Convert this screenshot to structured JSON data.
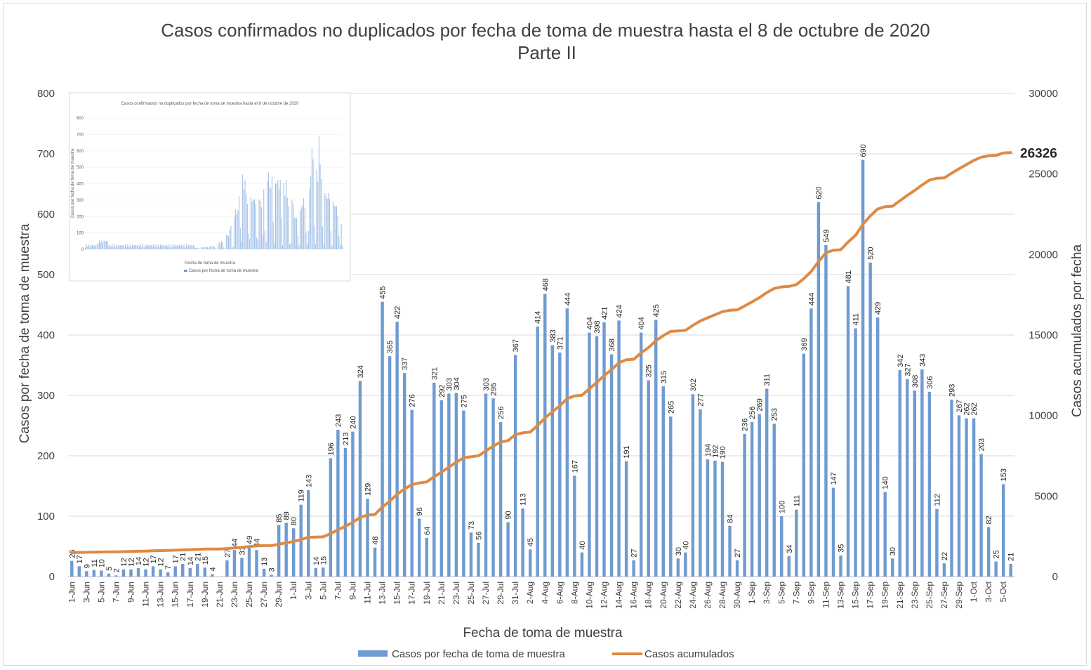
{
  "chart_data": {
    "type": "bar+line",
    "title": "Casos confirmados no duplicados por fecha de toma de muestra hasta el 8 de octubre de 2020",
    "subtitle": "Parte II",
    "xlabel": "Fecha de toma de muestra",
    "ylabel_left": "Casos por fecha de toma de muestra",
    "ylabel_right": "Casos acumulados por fecha",
    "ylim_left": [
      0,
      800
    ],
    "yticks_left": [
      0,
      100,
      200,
      300,
      400,
      500,
      600,
      700,
      800
    ],
    "ylim_right": [
      0,
      30000
    ],
    "yticks_right": [
      0,
      5000,
      10000,
      15000,
      20000,
      25000,
      30000
    ],
    "grid": true,
    "legend": "bottom",
    "categories": [
      "1-Jun",
      "2-Jun",
      "3-Jun",
      "4-Jun",
      "5-Jun",
      "6-Jun",
      "7-Jun",
      "8-Jun",
      "9-Jun",
      "10-Jun",
      "11-Jun",
      "12-Jun",
      "13-Jun",
      "14-Jun",
      "15-Jun",
      "16-Jun",
      "17-Jun",
      "18-Jun",
      "19-Jun",
      "20-Jun",
      "21-Jun",
      "22-Jun",
      "23-Jun",
      "24-Jun",
      "25-Jun",
      "26-Jun",
      "27-Jun",
      "28-Jun",
      "29-Jun",
      "30-Jun",
      "1-Jul",
      "2-Jul",
      "3-Jul",
      "4-Jul",
      "5-Jul",
      "6-Jul",
      "7-Jul",
      "8-Jul",
      "9-Jul",
      "10-Jul",
      "11-Jul",
      "12-Jul",
      "13-Jul",
      "14-Jul",
      "15-Jul",
      "16-Jul",
      "17-Jul",
      "18-Jul",
      "19-Jul",
      "20-Jul",
      "21-Jul",
      "22-Jul",
      "23-Jul",
      "24-Jul",
      "25-Jul",
      "26-Jul",
      "27-Jul",
      "28-Jul",
      "29-Jul",
      "30-Jul",
      "31-Jul",
      "1-Aug",
      "2-Aug",
      "3-Aug",
      "4-Aug",
      "5-Aug",
      "6-Aug",
      "7-Aug",
      "8-Aug",
      "9-Aug",
      "10-Aug",
      "11-Aug",
      "12-Aug",
      "13-Aug",
      "14-Aug",
      "15-Aug",
      "16-Aug",
      "17-Aug",
      "18-Aug",
      "19-Aug",
      "20-Aug",
      "21-Aug",
      "22-Aug",
      "23-Aug",
      "24-Aug",
      "25-Aug",
      "26-Aug",
      "27-Aug",
      "28-Aug",
      "29-Aug",
      "30-Aug",
      "31-Aug",
      "1-Sep",
      "2-Sep",
      "3-Sep",
      "4-Sep",
      "5-Sep",
      "6-Sep",
      "7-Sep",
      "8-Sep",
      "9-Sep",
      "10-Sep",
      "11-Sep",
      "12-Sep",
      "13-Sep",
      "14-Sep",
      "15-Sep",
      "16-Sep",
      "17-Sep",
      "18-Sep",
      "19-Sep",
      "20-Sep",
      "21-Sep",
      "22-Sep",
      "23-Sep",
      "24-Sep",
      "25-Sep",
      "26-Sep",
      "27-Sep",
      "28-Sep",
      "29-Sep",
      "30-Sep",
      "1-Oct",
      "2-Oct",
      "3-Oct",
      "4-Oct",
      "5-Oct",
      "6-Oct"
    ],
    "series": [
      {
        "name": "Casos por fecha de toma de muestra",
        "type": "bar",
        "axis": "left",
        "color": "#6f9bd1",
        "values": [
          26,
          17,
          9,
          11,
          10,
          5,
          2,
          12,
          12,
          14,
          12,
          17,
          12,
          7,
          17,
          21,
          14,
          21,
          15,
          4,
          null,
          27,
          44,
          31,
          49,
          44,
          13,
          3,
          85,
          89,
          80,
          119,
          143,
          14,
          15,
          196,
          243,
          213,
          240,
          324,
          129,
          48,
          455,
          365,
          422,
          337,
          276,
          96,
          64,
          321,
          292,
          303,
          304,
          275,
          73,
          56,
          303,
          295,
          256,
          90,
          367,
          113,
          45,
          414,
          468,
          383,
          371,
          444,
          167,
          40,
          404,
          398,
          421,
          368,
          424,
          191,
          27,
          404,
          325,
          425,
          315,
          265,
          30,
          40,
          302,
          277,
          194,
          192,
          190,
          84,
          27,
          236,
          256,
          269,
          311,
          253,
          100,
          34,
          111,
          369,
          444,
          620,
          549,
          147,
          35,
          481,
          411,
          690,
          520,
          429,
          140,
          30,
          342,
          327,
          308,
          343,
          306,
          112,
          22,
          293,
          267,
          262,
          262,
          203,
          82,
          25,
          153,
          21
        ]
      },
      {
        "name": "Casos acumulados",
        "type": "line",
        "axis": "right",
        "color": "#de8a45",
        "start_value": 1455,
        "end_label": "26326"
      }
    ]
  },
  "inset": {
    "title": "Casos confirmados no duplicados por fecha de toma de muestra hasta el 8 de octubre de 2020",
    "xlabel": "Fecha de toma de muestra",
    "ylabel": "Casos por fecha de toma de muestra",
    "legend": "Casos por fecha de toma de muestra",
    "yticks": [
      0,
      100,
      200,
      300,
      400,
      500,
      600,
      700,
      800
    ]
  }
}
